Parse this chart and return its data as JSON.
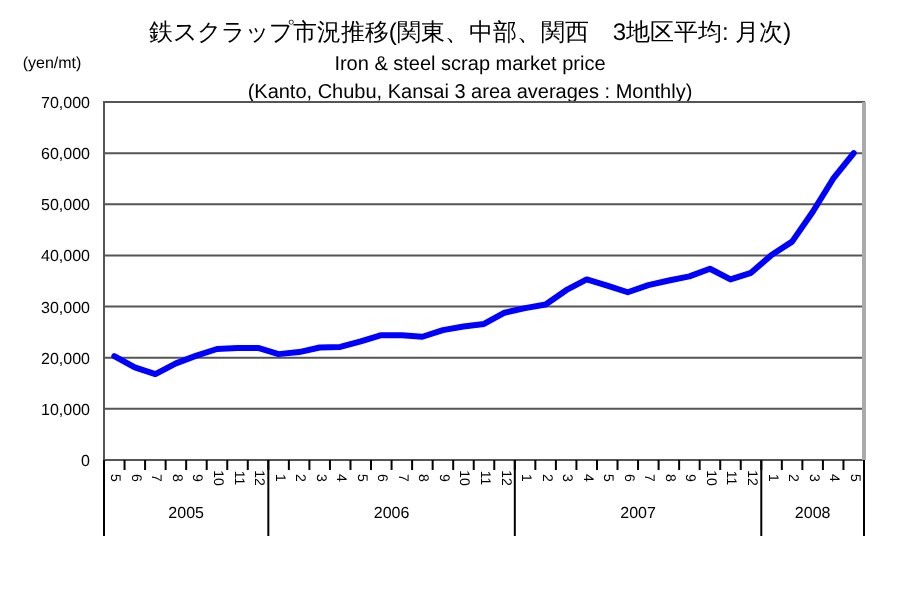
{
  "chart_data": {
    "type": "line",
    "title": "鉄スクラップ市況推移(関東、中部、関西　3地区平均: 月次)",
    "subtitle": "Iron & steel scrap market price\n(Kanto, Chubu, Kansai 3 area averages : Monthly)",
    "ylabel": "(yen/mt)",
    "categories": [
      "5",
      "6",
      "7",
      "8",
      "9",
      "10",
      "11",
      "12",
      "1",
      "2",
      "3",
      "4",
      "5",
      "6",
      "7",
      "8",
      "9",
      "10",
      "11",
      "12",
      "1",
      "2",
      "3",
      "4",
      "5",
      "6",
      "7",
      "8",
      "9",
      "10",
      "11",
      "12",
      "1",
      "2",
      "3",
      "4",
      "5"
    ],
    "annotations": [
      "2005",
      "2006",
      "2007",
      "2008"
    ],
    "series": [
      {
        "color": "#0000ff",
        "values": [
          20300,
          18100,
          16800,
          18900,
          20400,
          21700,
          21900,
          21900,
          20700,
          21100,
          22000,
          22100,
          23200,
          24400,
          24400,
          24100,
          25400,
          26100,
          26600,
          28800,
          29700,
          30400,
          33200,
          35300,
          34100,
          32800,
          34200,
          35100,
          35900,
          37400,
          35300,
          36600,
          40100,
          42700,
          48500,
          55000,
          60000
        ]
      }
    ],
    "ylim": [
      0,
      70000
    ],
    "yticks": [
      {
        "value": 0,
        "label": "0"
      },
      {
        "value": 10000,
        "label": "10,000"
      },
      {
        "value": 20000,
        "label": "20,000"
      },
      {
        "value": 30000,
        "label": "30,000"
      },
      {
        "value": 40000,
        "label": "40,000"
      },
      {
        "value": 50000,
        "label": "50,000"
      },
      {
        "value": 60000,
        "label": "60,000"
      },
      {
        "value": 70000,
        "label": "70,000"
      }
    ],
    "grid": "y",
    "marker": "none",
    "line_style": "solid"
  }
}
